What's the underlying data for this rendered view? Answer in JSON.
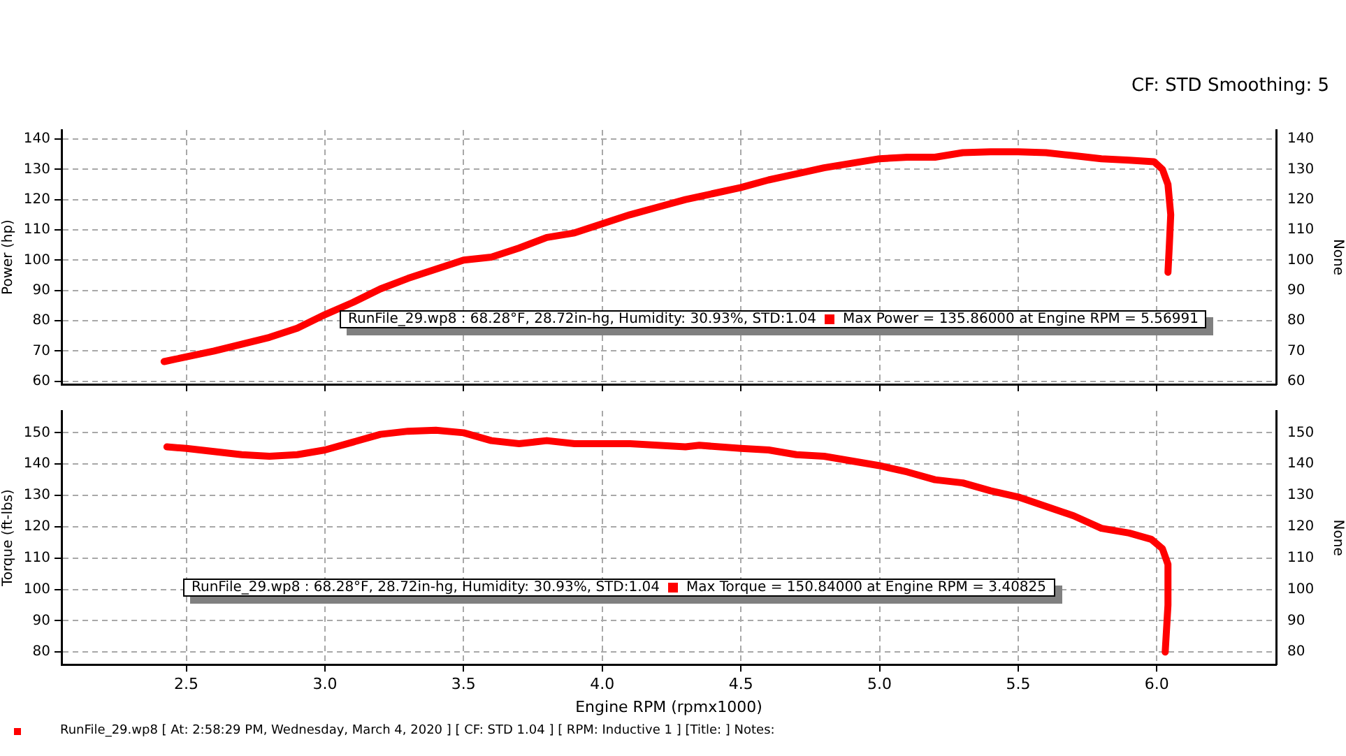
{
  "chart_data": [
    {
      "type": "line",
      "ylabel": "Power (hp)",
      "y2label": "None",
      "annotations": [
        "RunFile_29.wp8  : 68.28°F, 28.72in-hg, Humidity: 30.93%, STD:1.04",
        "CF: STD Smoothing: 5"
      ],
      "xlim": [
        2.05,
        6.43
      ],
      "xticks": [
        2.5,
        3,
        3.5,
        4,
        4.5,
        5,
        5.5,
        6
      ],
      "ylim": [
        59,
        143
      ],
      "yticks": [
        60,
        70,
        80,
        90,
        100,
        110,
        120,
        130,
        140
      ],
      "y2lim": [
        59,
        143
      ],
      "y2ticks": [
        60,
        70,
        80,
        90,
        100,
        110,
        120,
        130,
        140
      ],
      "tick_labels": "y",
      "grid": true,
      "legend": "bottom",
      "marker": "none",
      "line_style": "solid",
      "series": [
        {
          "name": "Max Power = 135.86000 at Engine RPM = 5.56991",
          "color": "#ff0000",
          "x": [
            2.42,
            2.6,
            2.8,
            2.9,
            3.0,
            3.1,
            3.2,
            3.3,
            3.4,
            3.5,
            3.6,
            3.7,
            3.8,
            3.9,
            4.0,
            4.1,
            4.2,
            4.3,
            4.4,
            4.5,
            4.6,
            4.7,
            4.8,
            4.9,
            5.0,
            5.1,
            5.2,
            5.3,
            5.4,
            5.5,
            5.6,
            5.7,
            5.8,
            5.9,
            5.99,
            6.02,
            6.04,
            6.05,
            6.045,
            6.04
          ],
          "values": [
            66.5,
            70,
            74.5,
            77.5,
            82,
            86,
            90.5,
            94,
            97,
            100,
            101,
            104,
            107.5,
            109,
            112,
            115,
            117.5,
            120,
            122,
            124,
            126.5,
            128.5,
            130.5,
            132,
            133.5,
            134,
            134,
            135.5,
            135.8,
            135.8,
            135.5,
            134.5,
            133.5,
            133,
            132.5,
            130,
            125,
            115,
            105,
            96
          ]
        }
      ]
    },
    {
      "type": "line",
      "xlabel": "Engine RPM (rpmx1000)",
      "ylabel": "Torque (ft-lbs)",
      "y2label": "None",
      "annotations": [
        "RunFile_29.wp8  : 68.28°F, 28.72in-hg, Humidity: 30.93%, STD:1.04",
        "RunFile_29.wp8 [ At: 2:58:29 PM, Wednesday, March 4, 2020 ] [ CF: STD 1.04 ] [ RPM: Inductive 1 ] [Title: ]  Notes:"
      ],
      "xlim": [
        2.05,
        6.43
      ],
      "xticks": [
        {
          "value": 2.5,
          "label": "2.5"
        },
        {
          "value": 3,
          "label": "3.0"
        },
        {
          "value": 3.5,
          "label": "3.5"
        },
        {
          "value": 4,
          "label": "4.0"
        },
        {
          "value": 4.5,
          "label": "4.5"
        },
        {
          "value": 5,
          "label": "5.0"
        },
        {
          "value": 5.5,
          "label": "5.5"
        },
        {
          "value": 6,
          "label": "6.0"
        }
      ],
      "ylim": [
        76,
        157
      ],
      "yticks": [
        80,
        90,
        100,
        110,
        120,
        130,
        140,
        150
      ],
      "y2lim": [
        76,
        157
      ],
      "y2ticks": [
        80,
        90,
        100,
        110,
        120,
        130,
        140,
        150
      ],
      "grid": true,
      "legend": "bottom",
      "marker": "none",
      "line_style": "solid",
      "series": [
        {
          "name": "Max Torque = 150.84000 at Engine RPM = 3.40825",
          "color": "#ff0000",
          "x": [
            2.43,
            2.5,
            2.6,
            2.7,
            2.8,
            2.9,
            3.0,
            3.1,
            3.2,
            3.3,
            3.4,
            3.5,
            3.6,
            3.7,
            3.8,
            3.9,
            4.0,
            4.1,
            4.2,
            4.3,
            4.35,
            4.5,
            4.6,
            4.7,
            4.8,
            4.9,
            5.0,
            5.1,
            5.2,
            5.3,
            5.4,
            5.5,
            5.6,
            5.7,
            5.8,
            5.9,
            5.98,
            6.02,
            6.04,
            6.04,
            6.03
          ],
          "values": [
            145.5,
            145,
            144,
            143,
            142.5,
            143,
            144.5,
            147,
            149.5,
            150.5,
            150.8,
            150,
            147.5,
            146.5,
            147.5,
            146.5,
            146.5,
            146.5,
            146,
            145.5,
            146,
            145,
            144.5,
            143,
            142.5,
            141,
            139.5,
            137.5,
            135,
            134,
            131.5,
            129.5,
            126.5,
            123.5,
            119.5,
            118,
            116,
            113,
            108,
            95,
            80
          ]
        }
      ]
    }
  ]
}
